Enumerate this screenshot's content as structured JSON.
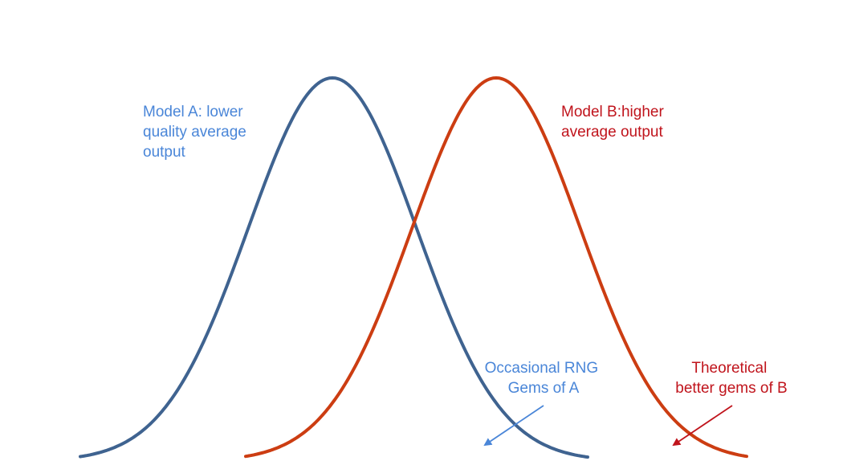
{
  "colors": {
    "model_a_curve": "#3f6390",
    "model_b_curve": "#cc3d12",
    "model_a_text": "#4a86d8",
    "model_b_text": "#c0141c",
    "background": "#ffffff"
  },
  "annotations": {
    "model_a": {
      "lines": [
        "Model A: lower",
        "quality average",
        "output"
      ]
    },
    "model_b": {
      "lines": [
        "Model B:higher",
        "average output"
      ]
    },
    "gems_a": {
      "lines": [
        "Occasional RNG",
        "Gems of A"
      ]
    },
    "gems_b": {
      "lines": [
        "Theoretical",
        "better gems of B"
      ]
    }
  }
}
